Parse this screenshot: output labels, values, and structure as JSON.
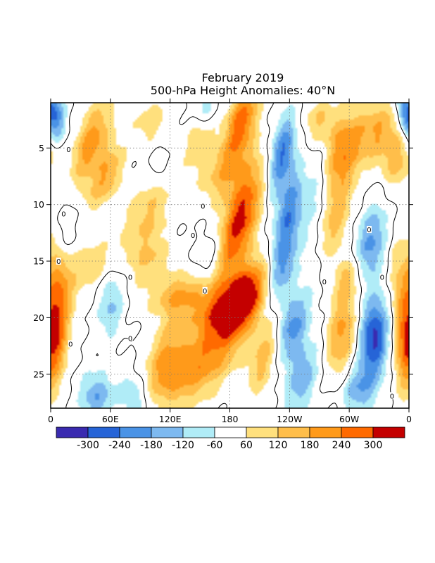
{
  "chart_data": {
    "type": "heatmap",
    "title": "February 2019",
    "subtitle": "500-hPa Height Anomalies: 40°N",
    "xlabel": "",
    "ylabel": "",
    "x_ticks": [
      {
        "lon": 0,
        "label": "0"
      },
      {
        "lon": 60,
        "label": "60E"
      },
      {
        "lon": 120,
        "label": "120E"
      },
      {
        "lon": 180,
        "label": "180"
      },
      {
        "lon": 240,
        "label": "120W"
      },
      {
        "lon": 300,
        "label": "60W"
      },
      {
        "lon": 360,
        "label": "0"
      }
    ],
    "xlim": [
      0,
      360
    ],
    "y_ticks": [
      {
        "day": 5,
        "label": "5"
      },
      {
        "day": 10,
        "label": "10"
      },
      {
        "day": 15,
        "label": "15"
      },
      {
        "day": 20,
        "label": "20"
      },
      {
        "day": 25,
        "label": "25"
      }
    ],
    "ylim": [
      1,
      28
    ],
    "y_inverted": true,
    "grid": "dotted",
    "zero_contour": true,
    "zero_contour_labels": [
      {
        "lon": 18,
        "day": 5.1,
        "label": "0"
      },
      {
        "lon": 13,
        "day": 10.8,
        "label": "0"
      },
      {
        "lon": 153,
        "day": 10.1,
        "label": "0"
      },
      {
        "lon": 143,
        "day": 12.7,
        "label": "0"
      },
      {
        "lon": 8,
        "day": 15.0,
        "label": "0"
      },
      {
        "lon": 80,
        "day": 16.4,
        "label": "0"
      },
      {
        "lon": 155,
        "day": 17.6,
        "label": "0"
      },
      {
        "lon": 80,
        "day": 21.8,
        "label": "0"
      },
      {
        "lon": 20,
        "day": 22.3,
        "label": "0"
      },
      {
        "lon": 275,
        "day": 16.8,
        "label": "0"
      },
      {
        "lon": 320,
        "day": 12.2,
        "label": "0"
      },
      {
        "lon": 333,
        "day": 16.4,
        "label": "0"
      },
      {
        "lon": 343,
        "day": 26.9,
        "label": "0"
      }
    ],
    "colorbar": {
      "colors": [
        "#3a2bb0",
        "#2664d7",
        "#4a93e6",
        "#7db9f0",
        "#b0ecf7",
        "#ffffff",
        "#ffe07d",
        "#ffbe4a",
        "#ff9a1a",
        "#ff6a00",
        "#c40000"
      ],
      "labels": [
        "-300",
        "-240",
        "-180",
        "-120",
        "-60",
        "60",
        "120",
        "180",
        "240",
        "300"
      ]
    },
    "features": [
      {
        "lon": 190,
        "day": 11.5,
        "amp": 330,
        "slon": 12,
        "sday": 3.5,
        "tilt": 0.25
      },
      {
        "lon": 195,
        "day": 18.2,
        "amp": 330,
        "slon": 14,
        "sday": 2.2,
        "tilt": 0.3
      },
      {
        "lon": 192,
        "day": 2.5,
        "amp": 270,
        "slon": 10,
        "sday": 2.2,
        "tilt": 0.2
      },
      {
        "lon": 175,
        "day": 7.0,
        "amp": 160,
        "slon": 15,
        "sday": 2.0,
        "tilt": 0.25
      },
      {
        "lon": 170,
        "day": 19.5,
        "amp": 210,
        "slon": 20,
        "sday": 1.8,
        "tilt": 0.4
      },
      {
        "lon": 128,
        "day": 18.0,
        "amp": 170,
        "slon": 20,
        "sday": 1.3,
        "tilt": 0.3
      },
      {
        "lon": 162,
        "day": 23.5,
        "amp": 180,
        "slon": 20,
        "sday": 2.5,
        "tilt": 0.4
      },
      {
        "lon": 125,
        "day": 25.5,
        "amp": 140,
        "slon": 18,
        "sday": 2.0,
        "tilt": 0.4
      },
      {
        "lon": 215,
        "day": 23.5,
        "amp": 150,
        "slon": 10,
        "sday": 2.5,
        "tilt": 0.2
      },
      {
        "lon": 233,
        "day": 5.5,
        "amp": -250,
        "slon": 9,
        "sday": 2.5,
        "tilt": 0.15
      },
      {
        "lon": 240,
        "day": 10.5,
        "amp": -200,
        "slon": 9,
        "sday": 2.5,
        "tilt": 0.2
      },
      {
        "lon": 233,
        "day": 15.5,
        "amp": -200,
        "slon": 9,
        "sday": 2.5,
        "tilt": 0.2
      },
      {
        "lon": 243,
        "day": 21.0,
        "amp": -210,
        "slon": 10,
        "sday": 2.2,
        "tilt": 0.2
      },
      {
        "lon": 253,
        "day": 25.5,
        "amp": -170,
        "slon": 10,
        "sday": 2.2,
        "tilt": 0.2
      },
      {
        "lon": 270,
        "day": 9.0,
        "amp": -120,
        "slon": 10,
        "sday": 5.0,
        "tilt": 0.1
      },
      {
        "lon": 272,
        "day": 2.5,
        "amp": 150,
        "slon": 12,
        "sday": 1.5,
        "tilt": 0.1
      },
      {
        "lon": 292,
        "day": 5.5,
        "amp": 240,
        "slon": 14,
        "sday": 2.5,
        "tilt": 0.2
      },
      {
        "lon": 283,
        "day": 11.5,
        "amp": 160,
        "slon": 12,
        "sday": 2.5,
        "tilt": 0.2
      },
      {
        "lon": 330,
        "day": 3.5,
        "amp": 170,
        "slon": 15,
        "sday": 2.0,
        "tilt": 0.1
      },
      {
        "lon": 350,
        "day": 6.0,
        "amp": 130,
        "slon": 10,
        "sday": 2.0,
        "tilt": 0.1
      },
      {
        "lon": 300,
        "day": 16.5,
        "amp": 140,
        "slon": 10,
        "sday": 1.5,
        "tilt": 0.2
      },
      {
        "lon": 293,
        "day": 21.5,
        "amp": 200,
        "slon": 10,
        "sday": 2.5,
        "tilt": 0.1
      },
      {
        "lon": 322,
        "day": 13.5,
        "amp": -200,
        "slon": 11,
        "sday": 2.5,
        "tilt": 0.15
      },
      {
        "lon": 326,
        "day": 21.8,
        "amp": -320,
        "slon": 10,
        "sday": 2.5,
        "tilt": 0.05
      },
      {
        "lon": 310,
        "day": 26.5,
        "amp": -160,
        "slon": 12,
        "sday": 1.5,
        "tilt": 0.1
      },
      {
        "lon": 357,
        "day": 1.5,
        "amp": -200,
        "slon": 6,
        "sday": 1.5,
        "tilt": 0.0
      },
      {
        "lon": 356,
        "day": 22.5,
        "amp": 160,
        "slon": 8,
        "sday": 3.0,
        "tilt": 0.0
      },
      {
        "lon": 350,
        "day": 16.0,
        "amp": 90,
        "slon": 8,
        "sday": 3.0,
        "tilt": 0.0
      },
      {
        "lon": 5,
        "day": 2.5,
        "amp": -190,
        "slon": 7,
        "sday": 1.5,
        "tilt": 0.0
      },
      {
        "lon": 15,
        "day": 12.5,
        "amp": -100,
        "slon": 6,
        "sday": 2.0,
        "tilt": 0.1
      },
      {
        "lon": 40,
        "day": 4.5,
        "amp": 220,
        "slon": 11,
        "sday": 2.5,
        "tilt": 0.25
      },
      {
        "lon": 55,
        "day": 7.5,
        "amp": 180,
        "slon": 10,
        "sday": 2.0,
        "tilt": 0.3
      },
      {
        "lon": 8,
        "day": 17.5,
        "amp": 190,
        "slon": 10,
        "sday": 3.5,
        "tilt": 0.05
      },
      {
        "lon": 5,
        "day": 22.0,
        "amp": 150,
        "slon": 8,
        "sday": 3.0,
        "tilt": 0.05
      },
      {
        "lon": 40,
        "day": 15.5,
        "amp": 110,
        "slon": 12,
        "sday": 1.5,
        "tilt": 0.3
      },
      {
        "lon": 60,
        "day": 19.0,
        "amp": -130,
        "slon": 9,
        "sday": 2.0,
        "tilt": 0.1
      },
      {
        "lon": 45,
        "day": 27.0,
        "amp": -170,
        "slon": 12,
        "sday": 1.5,
        "tilt": 0.0
      },
      {
        "lon": 85,
        "day": 27.0,
        "amp": -120,
        "slon": 12,
        "sday": 1.5,
        "tilt": 0.0
      },
      {
        "lon": 95,
        "day": 11.0,
        "amp": 130,
        "slon": 16,
        "sday": 2.5,
        "tilt": 0.3
      },
      {
        "lon": 100,
        "day": 15.0,
        "amp": 110,
        "slon": 14,
        "sday": 1.5,
        "tilt": 0.2
      },
      {
        "lon": 115,
        "day": 23.0,
        "amp": 150,
        "slon": 12,
        "sday": 2.5,
        "tilt": 0.3
      },
      {
        "lon": 155,
        "day": 1.5,
        "amp": -120,
        "slon": 8,
        "sday": 1.5,
        "tilt": 0.1
      },
      {
        "lon": 150,
        "day": 4.0,
        "amp": 120,
        "slon": 10,
        "sday": 2.0,
        "tilt": 0.2
      },
      {
        "lon": 160,
        "day": 14.5,
        "amp": -90,
        "slon": 8,
        "sday": 1.5,
        "tilt": 0.2
      },
      {
        "lon": 100,
        "day": 2.5,
        "amp": 100,
        "slon": 12,
        "sday": 1.5,
        "tilt": 0.1
      },
      {
        "lon": 110,
        "day": 6.5,
        "amp": -70,
        "slon": 6,
        "sday": 1.0,
        "tilt": 0.0
      }
    ]
  }
}
